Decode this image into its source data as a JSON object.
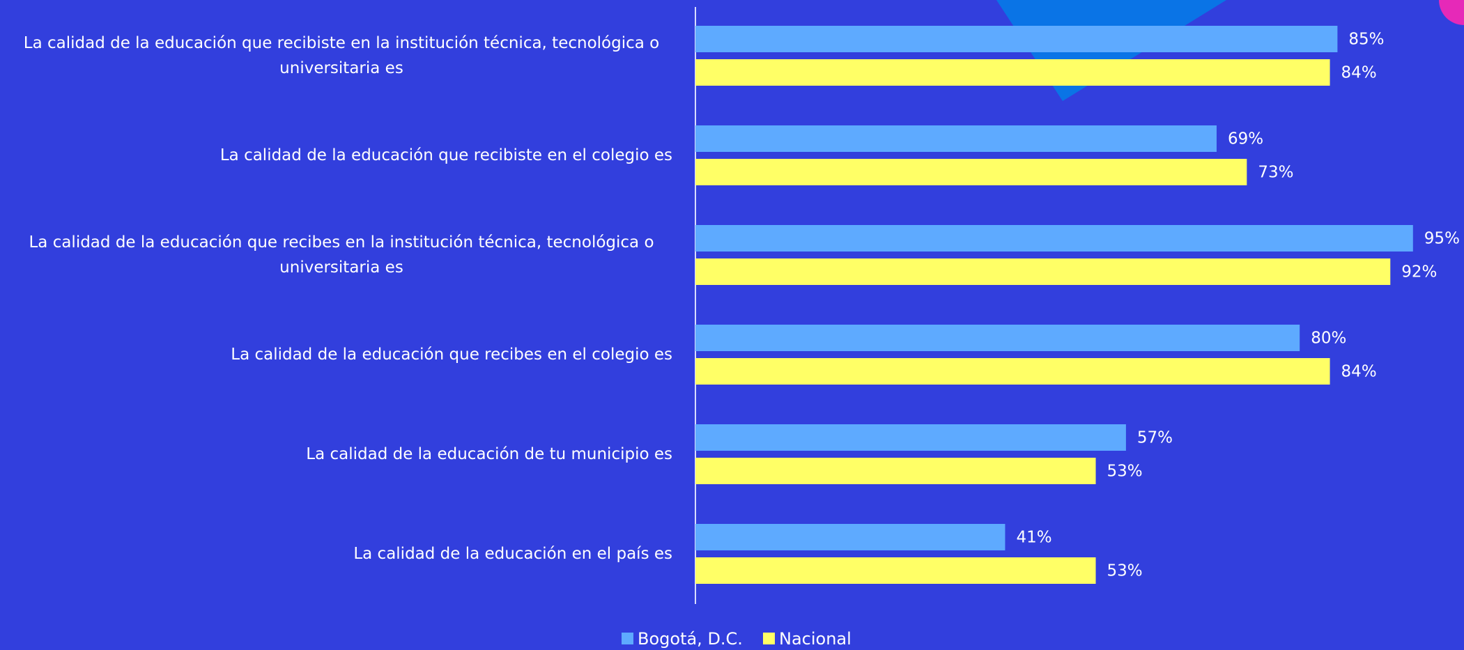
{
  "chart_data": {
    "type": "bar",
    "orientation": "horizontal",
    "categories": [
      "La calidad de la educación que recibiste en la institución técnica, tecnológica o universitaria es",
      "La calidad de la educación que recibiste en el colegio es",
      "La calidad de la educación que recibes en la institución técnica, tecnológica o universitaria es",
      "La calidad de la educación que recibes en el colegio es",
      "La calidad de la educación de tu municipio es",
      "La calidad de la educación en el país es"
    ],
    "series": [
      {
        "name": "Bogotá, D.C.",
        "color": "#5eaaff",
        "values": [
          85,
          69,
          95,
          80,
          57,
          41
        ],
        "value_labels": [
          "85%",
          "69%",
          "95%",
          "80%",
          "57%",
          "41%"
        ]
      },
      {
        "name": "Nacional",
        "color": "#ffff66",
        "values": [
          84,
          73,
          92,
          84,
          53,
          53
        ],
        "value_labels": [
          "84%",
          "73%",
          "92%",
          "84%",
          "53%",
          "53%"
        ]
      }
    ],
    "legend": "bottom"
  }
}
